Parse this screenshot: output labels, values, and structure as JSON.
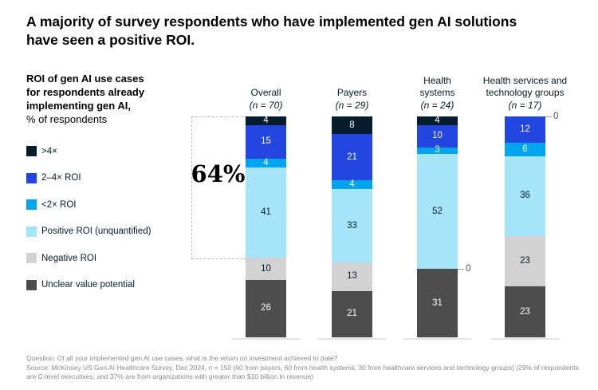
{
  "title": {
    "lines": [
      "A majority of survey respondents who have implemented gen AI solutions",
      "have seen a positive ROI."
    ]
  },
  "descriptor": {
    "bold_lines": [
      "ROI of gen AI use cases",
      "for respondents already",
      "implementing gen AI,"
    ],
    "unit_line": "% of respondents"
  },
  "callout": {
    "label": "64%"
  },
  "chart_data": {
    "type": "bar",
    "stacked": true,
    "ylabel": "% of respondents",
    "ylim": [
      0,
      100
    ],
    "legend_position": "left",
    "categories": [
      {
        "label_lines": [
          "Overall"
        ],
        "n_label": "(n = 70)"
      },
      {
        "label_lines": [
          "Payers"
        ],
        "n_label": "(n = 29)"
      },
      {
        "label_lines": [
          "Health",
          "systems"
        ],
        "n_label": "(n = 24)"
      },
      {
        "label_lines": [
          "Health services and",
          "technology groups"
        ],
        "n_label": "(n = 17)"
      }
    ],
    "series": [
      {
        "name": ">4×",
        "color": "#051C2C",
        "text_color": "#FFFFFF",
        "values": [
          4,
          8,
          4,
          0
        ]
      },
      {
        "name": "2–4× ROI",
        "color": "#2346E0",
        "text_color": "#FFFFFF",
        "values": [
          15,
          21,
          10,
          12
        ]
      },
      {
        "name": "<2× ROI",
        "color": "#00A5EE",
        "text_color": "#FFFFFF",
        "values": [
          4,
          4,
          3,
          6
        ]
      },
      {
        "name": "Positive ROI (unquantified)",
        "color": "#A6E5F8",
        "text_color": "#051C2C",
        "values": [
          41,
          33,
          52,
          36
        ]
      },
      {
        "name": "Negative ROI",
        "color": "#D2D2D2",
        "text_color": "#051C2C",
        "values": [
          10,
          13,
          0,
          23
        ]
      },
      {
        "name": "Unclear value potential",
        "color": "#4D4D4D",
        "text_color": "#FFFFFF",
        "values": [
          26,
          21,
          31,
          23
        ]
      }
    ],
    "zero_label": "0",
    "callout": {
      "value": "64%",
      "category": "Overall",
      "span_series": [
        ">4×",
        "2–4× ROI",
        "<2× ROI",
        "Positive ROI (unquantified)"
      ]
    }
  },
  "footnotes": {
    "question": "Question: Of all your implemented gen AI use cases, what is the return on investment achieved to date?",
    "source": "Source: McKinsey US Gen AI Healthcare Survey, Dec 2024, n = 150 (60 from payers, 60 from health systems, 30 from healthcare services and technology groups) (29% of respondents are C-level executives, and 37% are from organizations with greater than $10 billion in revenue)"
  }
}
